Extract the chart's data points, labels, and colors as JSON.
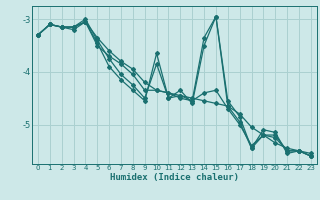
{
  "title": "",
  "xlabel": "Humidex (Indice chaleur)",
  "ylabel": "",
  "background_color": "#cde8e8",
  "grid_color": "#aad0d0",
  "line_color": "#1a7070",
  "tick_label_color": "#1a7070",
  "axis_label_color": "#1a7070",
  "xlim": [
    -0.5,
    23.5
  ],
  "ylim": [
    -5.75,
    -2.75
  ],
  "yticks": [
    -5,
    -4,
    -3
  ],
  "xticks": [
    0,
    1,
    2,
    3,
    4,
    5,
    6,
    7,
    8,
    9,
    10,
    11,
    12,
    13,
    14,
    15,
    16,
    17,
    18,
    19,
    20,
    21,
    22,
    23
  ],
  "lines": [
    {
      "x": [
        0,
        1,
        2,
        3,
        4,
        5,
        6,
        7,
        8,
        9,
        10,
        11,
        12,
        13,
        14,
        15,
        16,
        17,
        18,
        19,
        20,
        21,
        22,
        23
      ],
      "y": [
        -3.3,
        -3.1,
        -3.15,
        -3.2,
        -3.05,
        -3.35,
        -3.6,
        -3.8,
        -3.95,
        -4.2,
        -4.35,
        -4.4,
        -4.45,
        -4.5,
        -4.55,
        -4.6,
        -4.65,
        -4.8,
        -5.05,
        -5.2,
        -5.35,
        -5.45,
        -5.5,
        -5.55
      ]
    },
    {
      "x": [
        0,
        1,
        2,
        3,
        4,
        5,
        6,
        7,
        8,
        9,
        10,
        11,
        12,
        13,
        14,
        15,
        16,
        17,
        18,
        19,
        20,
        21,
        22,
        23
      ],
      "y": [
        -3.3,
        -3.1,
        -3.15,
        -3.15,
        -3.0,
        -3.4,
        -3.75,
        -4.05,
        -4.25,
        -4.5,
        -3.85,
        -4.5,
        -4.35,
        -4.6,
        -3.5,
        -2.95,
        -4.55,
        -4.85,
        -5.45,
        -5.1,
        -5.15,
        -5.55,
        -5.5,
        -5.6
      ]
    },
    {
      "x": [
        0,
        1,
        2,
        3,
        4,
        5,
        6,
        7,
        8,
        9,
        10,
        11,
        12,
        13,
        14,
        15,
        16,
        17,
        18,
        19,
        20,
        21,
        22,
        23
      ],
      "y": [
        -3.3,
        -3.1,
        -3.15,
        -3.15,
        -3.05,
        -3.45,
        -3.9,
        -4.15,
        -4.35,
        -4.55,
        -3.65,
        -4.5,
        -4.45,
        -4.55,
        -3.35,
        -2.95,
        -4.65,
        -4.95,
        -5.45,
        -5.2,
        -5.2,
        -5.5,
        -5.5,
        -5.6
      ]
    },
    {
      "x": [
        0,
        1,
        2,
        3,
        4,
        5,
        6,
        7,
        8,
        9,
        10,
        11,
        12,
        13,
        14,
        15,
        16,
        17,
        18,
        19,
        20,
        21,
        22,
        23
      ],
      "y": [
        -3.3,
        -3.1,
        -3.15,
        -3.15,
        -3.05,
        -3.5,
        -3.7,
        -3.85,
        -4.05,
        -4.35,
        -4.35,
        -4.4,
        -4.5,
        -4.55,
        -4.4,
        -4.35,
        -4.7,
        -5.0,
        -5.4,
        -5.2,
        -5.25,
        -5.5,
        -5.5,
        -5.6
      ]
    }
  ],
  "marker": "D",
  "markersize": 2.0,
  "linewidth": 0.9
}
